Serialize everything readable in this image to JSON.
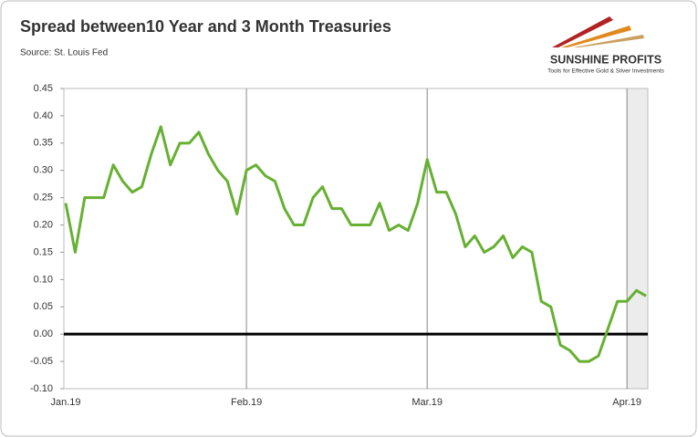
{
  "chart_data": {
    "type": "line",
    "title": "Spread between10 Year and 3 Month Treasuries",
    "source": "Source: St. Louis Fed",
    "logo": {
      "name": "SUNSHINE PROFITS",
      "tagline": "Tools for Effective Gold & Silver Investments"
    },
    "categories": [
      "Jan.19",
      null,
      null,
      null,
      null,
      null,
      null,
      null,
      null,
      null,
      null,
      null,
      null,
      null,
      null,
      null,
      null,
      null,
      null,
      "Feb.19",
      null,
      null,
      null,
      null,
      null,
      null,
      null,
      null,
      null,
      null,
      null,
      null,
      null,
      null,
      null,
      null,
      null,
      null,
      "Mar.19",
      null,
      null,
      null,
      null,
      null,
      null,
      null,
      null,
      null,
      null,
      null,
      null,
      null,
      null,
      null,
      null,
      null,
      null,
      null,
      null,
      "Apr.19",
      null,
      null
    ],
    "values": [
      0.24,
      0.15,
      0.25,
      0.25,
      0.25,
      0.31,
      0.28,
      0.26,
      0.27,
      0.33,
      0.38,
      0.31,
      0.35,
      0.35,
      0.37,
      0.33,
      0.3,
      0.28,
      0.22,
      0.3,
      0.31,
      0.29,
      0.28,
      0.23,
      0.2,
      0.2,
      0.25,
      0.27,
      0.23,
      0.23,
      0.2,
      0.2,
      0.2,
      0.24,
      0.19,
      0.2,
      0.19,
      0.24,
      0.32,
      0.26,
      0.26,
      0.22,
      0.16,
      0.18,
      0.15,
      0.16,
      0.18,
      0.14,
      0.16,
      0.15,
      0.06,
      0.05,
      -0.02,
      -0.03,
      -0.05,
      -0.05,
      -0.04,
      0.01,
      0.06,
      0.06,
      0.08,
      0.07
    ],
    "color": "#66b032",
    "ylim": [
      -0.1,
      0.45
    ],
    "yticks": [
      {
        "value": -0.1,
        "label": "-0.10"
      },
      -0.05,
      {
        "value": 0,
        "label": "0.00"
      },
      0.05,
      {
        "value": 0.1,
        "label": "0.10"
      },
      0.15,
      {
        "value": 0.2,
        "label": "0.20"
      },
      0.25,
      {
        "value": 0.3,
        "label": "0.30"
      },
      0.35,
      {
        "value": 0.4,
        "label": "0.40"
      },
      0.45
    ],
    "grid": "x",
    "zero_line": true
  }
}
